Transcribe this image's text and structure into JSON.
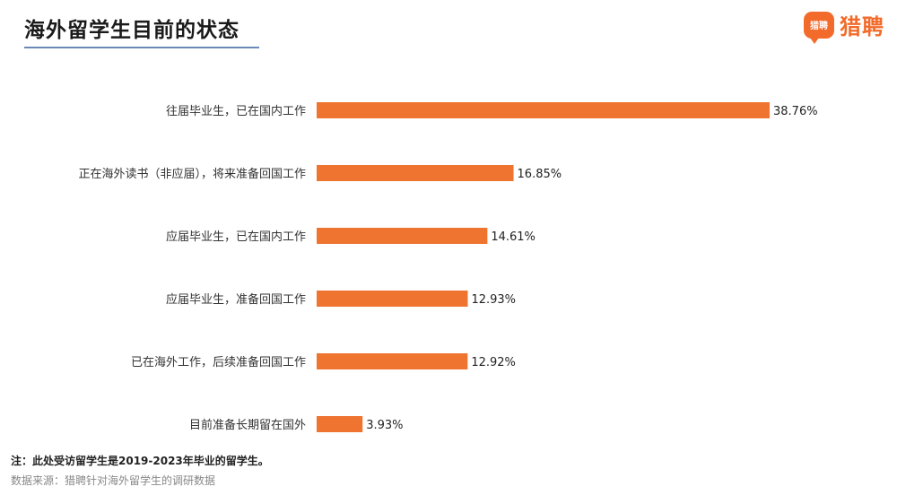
{
  "title": "海外留学生目前的状态",
  "logo": {
    "badge": "猎聘",
    "text": "猎聘"
  },
  "chart_data": {
    "type": "bar",
    "orientation": "horizontal",
    "categories": [
      "往届毕业生，已在国内工作",
      "正在海外读书（非应届），将来准备回国工作",
      "应届毕业生，已在国内工作",
      "应届毕业生，准备回国工作",
      "已在海外工作，后续准备回国工作",
      "目前准备长期留在国外"
    ],
    "values": [
      38.76,
      16.85,
      14.61,
      12.93,
      12.92,
      3.93
    ],
    "labels": [
      "38.76%",
      "16.85%",
      "14.61%",
      "12.93%",
      "12.92%",
      "3.93%"
    ],
    "bar_color": "#ee7430",
    "grid": false,
    "legend": "none"
  },
  "footnote": "注：此处受访留学生是2019-2023年毕业的留学生。",
  "source": "数据来源：猎聘针对海外留学生的调研数据"
}
